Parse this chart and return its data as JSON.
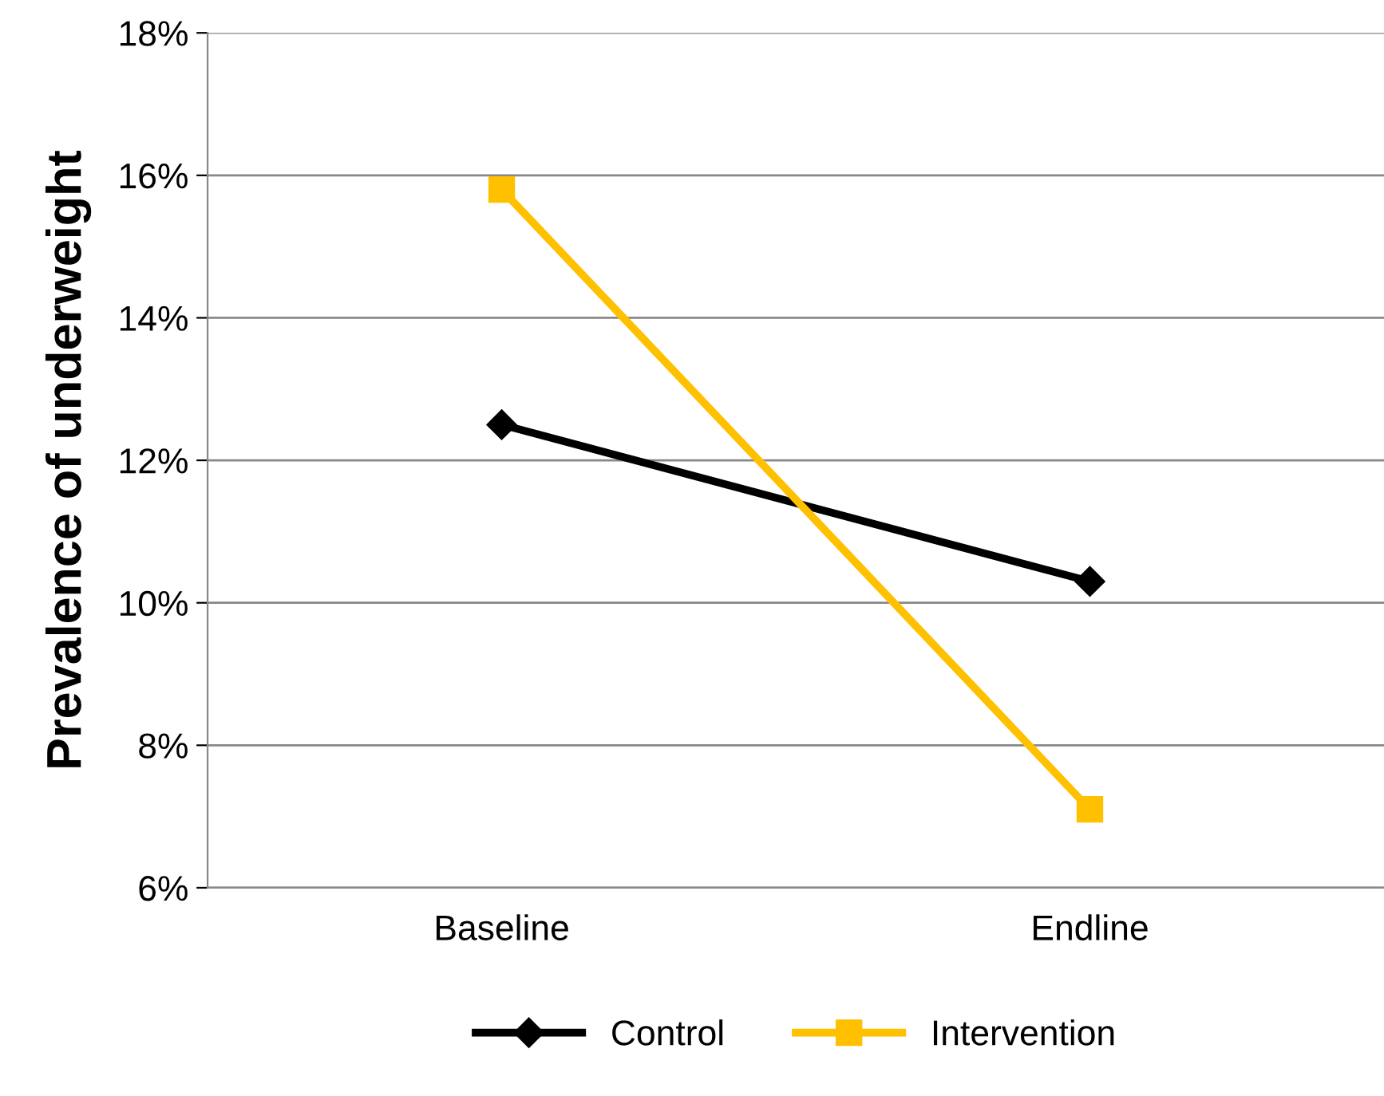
{
  "chart_data": {
    "type": "line",
    "ylabel": "Prevalence of underweight",
    "categories": [
      "Baseline",
      "Endline"
    ],
    "series": [
      {
        "name": "Control",
        "color": "#000000",
        "marker": "diamond",
        "values": [
          12.5,
          10.3
        ]
      },
      {
        "name": "Intervention",
        "color": "#ffc000",
        "marker": "square",
        "values": [
          15.8,
          7.1
        ]
      }
    ],
    "ylim": [
      6,
      18
    ],
    "yticks": [
      {
        "value": 6,
        "label": "6%"
      },
      {
        "value": 8,
        "label": "8%"
      },
      {
        "value": 10,
        "label": "10%"
      },
      {
        "value": 12,
        "label": "12%"
      },
      {
        "value": 14,
        "label": "14%"
      },
      {
        "value": 16,
        "label": "16%"
      },
      {
        "value": 18,
        "label": "18%"
      }
    ],
    "grid": "y",
    "legend": "bottom",
    "line_style": "solid"
  }
}
